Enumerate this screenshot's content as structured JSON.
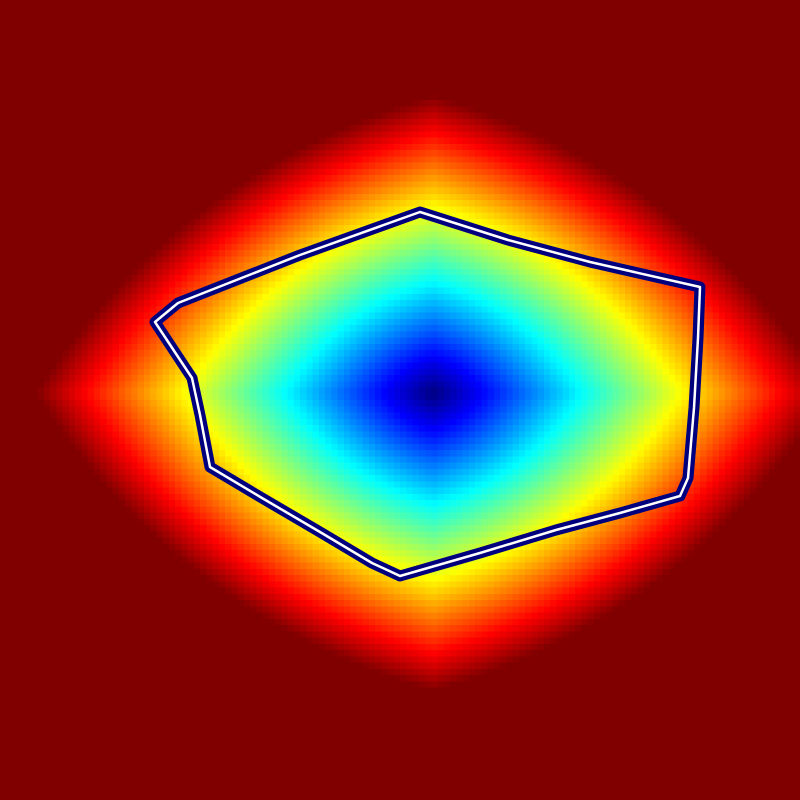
{
  "colormap": "jet",
  "colors": {
    "outside_max": "#7f0000",
    "boundary_band": "#00007f",
    "contour_line": "#ffffff"
  },
  "heatmap": {
    "center_value": 0.0,
    "edge_value": 1.0,
    "has_legend": false,
    "has_axes": false
  }
}
